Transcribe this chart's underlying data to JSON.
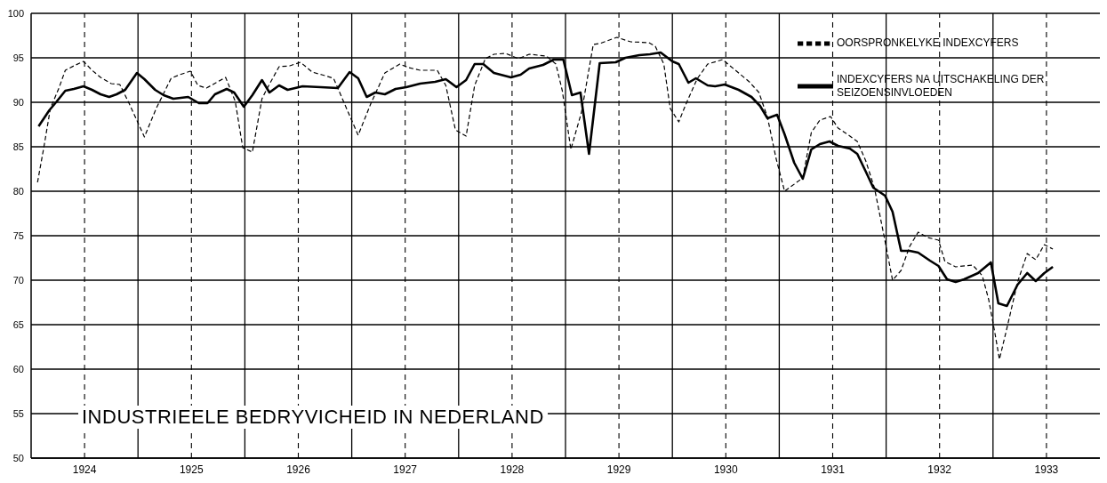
{
  "chart_data": {
    "type": "line",
    "title": "INDUSTRIEELE BEDRYVICHEID IN NEDERLAND",
    "xlim": [
      1924,
      1934
    ],
    "xticks": [
      {
        "value": 1924.5,
        "label": "1924"
      },
      {
        "value": 1925,
        "label": null
      },
      {
        "value": 1925.5,
        "label": "1925"
      },
      {
        "value": 1926,
        "label": null
      },
      {
        "value": 1926.5,
        "label": "1926"
      },
      {
        "value": 1927,
        "label": null
      },
      {
        "value": 1927.5,
        "label": "1927"
      },
      {
        "value": 1928,
        "label": null
      },
      {
        "value": 1928.5,
        "label": "1928"
      },
      {
        "value": 1929,
        "label": null
      },
      {
        "value": 1929.5,
        "label": "1929"
      },
      {
        "value": 1930,
        "label": null
      },
      {
        "value": 1930.5,
        "label": "1930"
      },
      {
        "value": 1931,
        "label": null
      },
      {
        "value": 1931.5,
        "label": "1931"
      },
      {
        "value": 1932,
        "label": null
      },
      {
        "value": 1932.5,
        "label": "1932"
      },
      {
        "value": 1933,
        "label": null
      },
      {
        "value": 1933.5,
        "label": "1933"
      }
    ],
    "ylim": [
      50,
      100
    ],
    "yticks": [
      50,
      55,
      60,
      65,
      70,
      75,
      80,
      85,
      90,
      95,
      100
    ],
    "grid": true,
    "legend": "top right",
    "series": [
      {
        "name": "OORSPRONKELYKE INDEXCYFERS",
        "color": "#000000",
        "line_style": "dashed",
        "x": [
          1924.06,
          1924.12,
          1924.18,
          1924.26,
          1924.32,
          1924.4,
          1924.49,
          1924.57,
          1924.65,
          1924.75,
          1924.83,
          1924.92,
          1925.06,
          1925.17,
          1925.31,
          1925.39,
          1925.49,
          1925.56,
          1925.64,
          1925.82,
          1925.91,
          1925.98,
          1926.07,
          1926.16,
          1926.21,
          1926.32,
          1926.42,
          1926.52,
          1926.63,
          1926.72,
          1926.83,
          1926.93,
          1927.06,
          1927.18,
          1927.31,
          1927.45,
          1927.53,
          1927.64,
          1927.8,
          1927.88,
          1927.97,
          1928.07,
          1928.15,
          1928.25,
          1928.33,
          1928.44,
          1928.56,
          1928.66,
          1928.82,
          1928.91,
          1928.97,
          1929.05,
          1929.15,
          1929.26,
          1929.32,
          1929.48,
          1929.61,
          1929.78,
          1929.84,
          1929.92,
          1929.98,
          1930.06,
          1930.12,
          1930.23,
          1930.33,
          1930.47,
          1930.72,
          1930.81,
          1930.89,
          1930.97,
          1931.05,
          1931.22,
          1931.3,
          1931.38,
          1931.48,
          1931.55,
          1931.65,
          1931.73,
          1931.81,
          1931.89,
          1931.98,
          1932.06,
          1932.14,
          1932.22,
          1932.3,
          1932.39,
          1932.49,
          1932.55,
          1932.65,
          1932.81,
          1932.9,
          1932.96,
          1933.02,
          1933.06,
          1933.13,
          1933.23,
          1933.32,
          1933.4,
          1933.48,
          1933.56
        ],
        "values": [
          81.0,
          85.0,
          89.3,
          91.6,
          93.6,
          94.1,
          94.6,
          93.6,
          92.8,
          92.1,
          92.0,
          89.8,
          86.1,
          89.3,
          92.7,
          93.1,
          93.5,
          91.9,
          91.6,
          92.8,
          90.1,
          84.9,
          84.4,
          90.4,
          91.6,
          94.0,
          94.1,
          94.5,
          93.4,
          93.1,
          92.7,
          89.9,
          86.3,
          89.9,
          93.3,
          94.3,
          93.9,
          93.6,
          93.6,
          91.9,
          86.9,
          86.2,
          91.9,
          94.9,
          95.4,
          95.5,
          94.9,
          95.4,
          95.2,
          94.3,
          91.3,
          84.7,
          88.9,
          96.5,
          96.6,
          97.3,
          96.8,
          96.7,
          96.3,
          94.3,
          89.3,
          87.8,
          89.6,
          92.6,
          94.3,
          94.8,
          92.3,
          91.1,
          88.3,
          83.7,
          80.0,
          81.5,
          86.6,
          88.0,
          88.4,
          87.1,
          86.3,
          85.6,
          83.4,
          80.4,
          75.0,
          70.0,
          71.1,
          73.8,
          75.4,
          74.8,
          74.5,
          72.1,
          71.5,
          71.7,
          70.5,
          67.8,
          63.9,
          61.1,
          64.6,
          69.8,
          73.0,
          72.3,
          74.0,
          73.5
        ]
      },
      {
        "name": "INDEXCYFERS NA UITSCHAKELING DER SEIZOENSINVLOEDEN",
        "color": "#000000",
        "line_style": "solid",
        "x": [
          1924.07,
          1924.17,
          1924.24,
          1924.32,
          1924.4,
          1924.49,
          1924.57,
          1924.65,
          1924.73,
          1924.8,
          1924.88,
          1924.99,
          1925.06,
          1925.16,
          1925.24,
          1925.33,
          1925.47,
          1925.57,
          1925.65,
          1925.72,
          1925.83,
          1925.9,
          1925.99,
          1926.07,
          1926.16,
          1926.23,
          1926.32,
          1926.4,
          1926.54,
          1926.71,
          1926.87,
          1926.98,
          1927.06,
          1927.14,
          1927.22,
          1927.31,
          1927.41,
          1927.51,
          1927.64,
          1927.78,
          1927.88,
          1927.98,
          1928.07,
          1928.15,
          1928.23,
          1928.33,
          1928.49,
          1928.58,
          1928.66,
          1928.79,
          1928.89,
          1928.98,
          1929.06,
          1929.14,
          1929.22,
          1929.32,
          1929.47,
          1929.56,
          1929.69,
          1929.79,
          1929.89,
          1930.0,
          1930.06,
          1930.15,
          1930.22,
          1930.33,
          1930.4,
          1930.49,
          1930.62,
          1930.74,
          1930.82,
          1930.89,
          1930.98,
          1931.05,
          1931.14,
          1931.22,
          1931.3,
          1931.38,
          1931.47,
          1931.55,
          1931.66,
          1931.73,
          1931.81,
          1931.88,
          1931.99,
          1932.06,
          1932.14,
          1932.22,
          1932.3,
          1932.41,
          1932.49,
          1932.57,
          1932.65,
          1932.73,
          1932.86,
          1932.98,
          1933.05,
          1933.13,
          1933.23,
          1933.32,
          1933.4,
          1933.48,
          1933.56
        ],
        "values": [
          87.3,
          89.1,
          90.1,
          91.3,
          91.5,
          91.8,
          91.4,
          90.9,
          90.6,
          90.9,
          91.4,
          93.3,
          92.6,
          91.4,
          90.8,
          90.4,
          90.6,
          89.9,
          89.9,
          90.9,
          91.5,
          91.1,
          89.5,
          90.8,
          92.5,
          91.1,
          91.9,
          91.4,
          91.8,
          91.7,
          91.6,
          93.4,
          92.7,
          90.6,
          91.1,
          90.9,
          91.5,
          91.7,
          92.1,
          92.3,
          92.6,
          91.7,
          92.5,
          94.3,
          94.3,
          93.3,
          92.8,
          93.1,
          93.8,
          94.2,
          94.8,
          94.8,
          90.8,
          91.1,
          84.2,
          94.4,
          94.5,
          95.0,
          95.3,
          95.4,
          95.6,
          94.6,
          94.3,
          92.2,
          92.7,
          91.9,
          91.8,
          92.0,
          91.4,
          90.6,
          89.6,
          88.2,
          88.6,
          86.4,
          83.2,
          81.4,
          84.7,
          85.3,
          85.6,
          85.1,
          84.8,
          84.2,
          82.2,
          80.4,
          79.5,
          77.7,
          73.3,
          73.3,
          73.1,
          72.2,
          71.6,
          70.1,
          69.8,
          70.1,
          70.8,
          72.0,
          67.4,
          67.1,
          69.5,
          70.8,
          69.9,
          70.8,
          71.5
        ]
      }
    ]
  }
}
